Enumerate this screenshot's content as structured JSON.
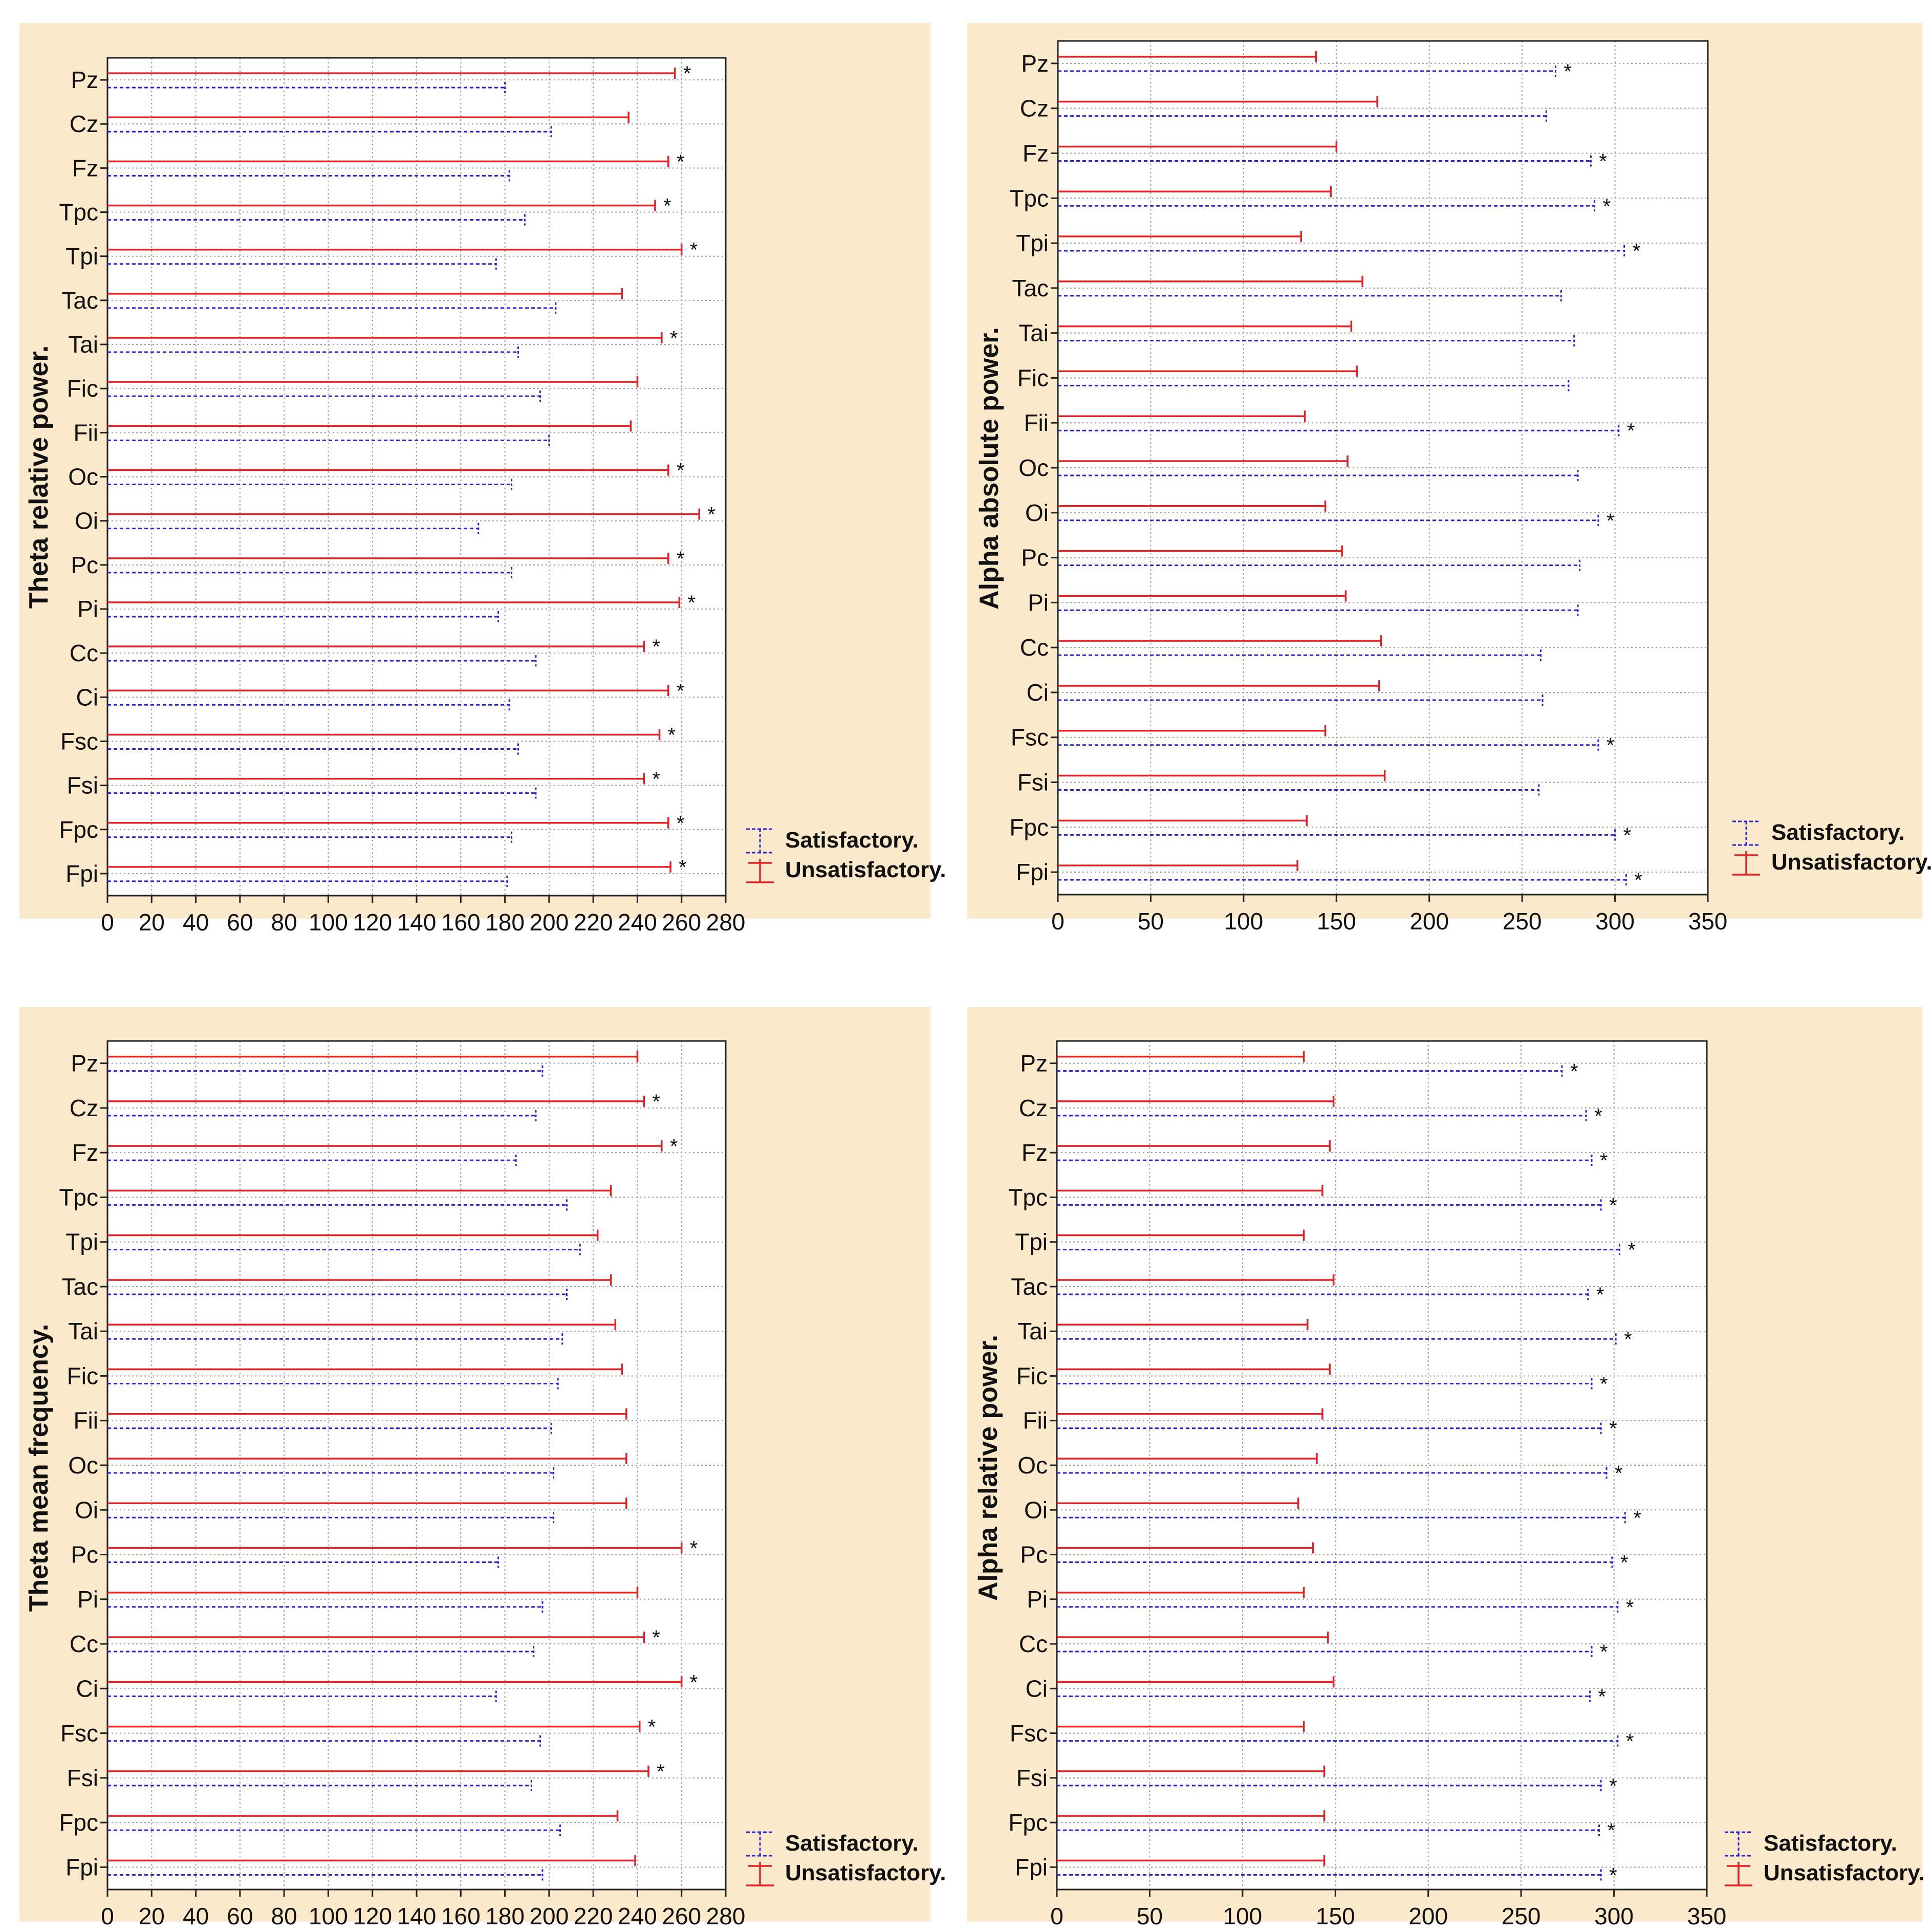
{
  "colors": {
    "panel_bg": "#fbe9cb",
    "unsatisfactory": "#e32226",
    "satisfactory": "#2424d6",
    "grid": "#9a9a9a"
  },
  "legend": {
    "satisfactory": "Satisfactory.",
    "unsatisfactory": "Unsatisfactory."
  },
  "significance_marker": "*",
  "chart_data": [
    {
      "type": "bar",
      "orientation": "horizontal",
      "title": "",
      "ylabel": "Theta relative power.",
      "xlabel": "",
      "xlim": [
        0,
        280
      ],
      "xticks": [
        0,
        20,
        40,
        60,
        80,
        100,
        120,
        140,
        160,
        180,
        200,
        220,
        240,
        260,
        280
      ],
      "categories": [
        "Pz",
        "Cz",
        "Fz",
        "Tpc",
        "Tpi",
        "Tac",
        "Tai",
        "Fic",
        "Fii",
        "Oc",
        "Oi",
        "Pc",
        "Pi",
        "Cc",
        "Ci",
        "Fsc",
        "Fsi",
        "Fpc",
        "Fpi"
      ],
      "series": [
        {
          "name": "Unsatisfactory.",
          "values": [
            257,
            236,
            254,
            248,
            260,
            233,
            251,
            240,
            237,
            254,
            268,
            254,
            259,
            243,
            254,
            250,
            243,
            254,
            255
          ]
        },
        {
          "name": "Satisfactory.",
          "values": [
            180,
            201,
            182,
            189,
            176,
            203,
            186,
            196,
            200,
            183,
            168,
            183,
            177,
            194,
            182,
            186,
            194,
            183,
            181
          ]
        }
      ],
      "significant": [
        true,
        false,
        true,
        true,
        true,
        false,
        true,
        false,
        false,
        true,
        true,
        true,
        true,
        true,
        true,
        true,
        true,
        true,
        true
      ]
    },
    {
      "type": "bar",
      "orientation": "horizontal",
      "title": "",
      "ylabel": "Alpha absolute power.",
      "xlabel": "",
      "xlim": [
        0,
        350
      ],
      "xticks": [
        0,
        50,
        100,
        150,
        200,
        250,
        300,
        350
      ],
      "categories": [
        "Pz",
        "Cz",
        "Fz",
        "Tpc",
        "Tpi",
        "Tac",
        "Tai",
        "Fic",
        "Fii",
        "Oc",
        "Oi",
        "Pc",
        "Pi",
        "Cc",
        "Ci",
        "Fsc",
        "Fsi",
        "Fpc",
        "Fpi"
      ],
      "series": [
        {
          "name": "Unsatisfactory.",
          "values": [
            139,
            172,
            150,
            147,
            131,
            164,
            158,
            161,
            133,
            156,
            144,
            153,
            155,
            174,
            173,
            144,
            176,
            134,
            129
          ]
        },
        {
          "name": "Satisfactory.",
          "values": [
            268,
            263,
            287,
            289,
            305,
            271,
            278,
            275,
            302,
            280,
            291,
            281,
            280,
            260,
            261,
            291,
            259,
            300,
            306
          ]
        }
      ],
      "significant": [
        true,
        false,
        true,
        true,
        true,
        false,
        false,
        false,
        true,
        false,
        true,
        false,
        false,
        false,
        false,
        true,
        false,
        true,
        true
      ]
    },
    {
      "type": "bar",
      "orientation": "horizontal",
      "title": "",
      "ylabel": "Theta mean frequency.",
      "xlabel": "",
      "xlim": [
        0,
        280
      ],
      "xticks": [
        0,
        20,
        40,
        60,
        80,
        100,
        120,
        140,
        160,
        180,
        200,
        220,
        240,
        260,
        280
      ],
      "categories": [
        "Pz",
        "Cz",
        "Fz",
        "Tpc",
        "Tpi",
        "Tac",
        "Tai",
        "Fic",
        "Fii",
        "Oc",
        "Oi",
        "Pc",
        "Pi",
        "Cc",
        "Ci",
        "Fsc",
        "Fsi",
        "Fpc",
        "Fpi"
      ],
      "series": [
        {
          "name": "Unsatisfactory.",
          "values": [
            240,
            243,
            251,
            228,
            222,
            228,
            230,
            233,
            235,
            235,
            235,
            260,
            240,
            243,
            260,
            241,
            245,
            231,
            239
          ]
        },
        {
          "name": "Satisfactory.",
          "values": [
            197,
            194,
            185,
            208,
            214,
            208,
            206,
            204,
            201,
            202,
            202,
            177,
            197,
            193,
            176,
            196,
            192,
            205,
            197
          ]
        }
      ],
      "significant": [
        false,
        true,
        true,
        false,
        false,
        false,
        false,
        false,
        false,
        false,
        false,
        true,
        false,
        true,
        true,
        true,
        true,
        false,
        false
      ]
    },
    {
      "type": "bar",
      "orientation": "horizontal",
      "title": "",
      "ylabel": "Alpha relative power.",
      "xlabel": "",
      "xlim": [
        0,
        350
      ],
      "xticks": [
        0,
        50,
        100,
        150,
        200,
        250,
        300,
        350
      ],
      "categories": [
        "Pz",
        "Cz",
        "Fz",
        "Tpc",
        "Tpi",
        "Tac",
        "Tai",
        "Fic",
        "Fii",
        "Oc",
        "Oi",
        "Pc",
        "Pi",
        "Cc",
        "Ci",
        "Fsc",
        "Fsi",
        "Fpc",
        "Fpi"
      ],
      "series": [
        {
          "name": "Unsatisfactory.",
          "values": [
            133,
            149,
            147,
            143,
            133,
            149,
            135,
            147,
            143,
            140,
            130,
            138,
            133,
            146,
            149,
            133,
            144,
            144,
            144
          ]
        },
        {
          "name": "Satisfactory.",
          "values": [
            272,
            285,
            288,
            293,
            303,
            286,
            301,
            288,
            293,
            296,
            306,
            299,
            302,
            288,
            287,
            302,
            293,
            292,
            293
          ]
        }
      ],
      "significant": [
        true,
        true,
        true,
        true,
        true,
        true,
        true,
        true,
        true,
        true,
        true,
        true,
        true,
        true,
        true,
        true,
        true,
        true,
        true
      ]
    }
  ]
}
